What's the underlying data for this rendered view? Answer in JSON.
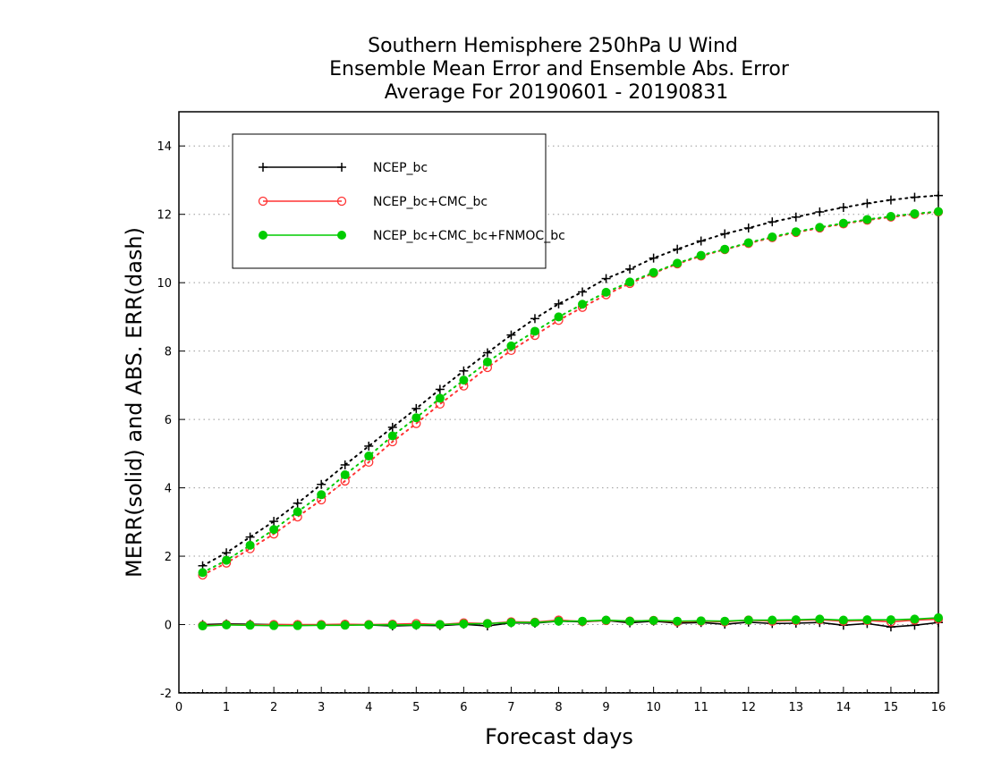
{
  "chart_data": {
    "type": "line",
    "title": [
      "Southern Hemisphere 250hPa U Wind",
      "Ensemble Mean Error and Ensemble Abs. Error",
      "Average For 20190601 - 20190831"
    ],
    "xlabel": "Forecast days",
    "ylabel": "MERR(solid) and ABS. ERR(dash)",
    "xlim": [
      0,
      16
    ],
    "ylim": [
      -2,
      15
    ],
    "xticks": [
      "0",
      "1",
      "2",
      "3",
      "4",
      "5",
      "6",
      "7",
      "8",
      "9",
      "10",
      "11",
      "12",
      "13",
      "14",
      "15",
      "16"
    ],
    "yticks": [
      "-2",
      "0",
      "2",
      "4",
      "6",
      "8",
      "10",
      "12",
      "14"
    ],
    "grid": "horizontal dotted",
    "legend_position": "top-left",
    "x": [
      0.5,
      1,
      1.5,
      2,
      2.5,
      3,
      3.5,
      4,
      4.5,
      5,
      5.5,
      6,
      6.5,
      7,
      7.5,
      8,
      8.5,
      9,
      9.5,
      10,
      10.5,
      11,
      11.5,
      12,
      12.5,
      13,
      13.5,
      14,
      14.5,
      15,
      15.5,
      16
    ],
    "series": [
      {
        "name": "NCEP_bc",
        "color": "#000000",
        "marker": "plus",
        "merr": [
          0.0,
          0.02,
          0.01,
          0.0,
          -0.01,
          -0.01,
          0.0,
          -0.01,
          -0.04,
          -0.02,
          -0.03,
          0.01,
          -0.04,
          0.05,
          0.04,
          0.1,
          0.08,
          0.12,
          0.05,
          0.1,
          0.04,
          0.06,
          0.01,
          0.07,
          0.03,
          0.04,
          0.06,
          -0.02,
          0.03,
          -0.07,
          -0.02,
          0.06
        ],
        "abs_err": [
          1.72,
          2.1,
          2.56,
          3.02,
          3.55,
          4.1,
          4.67,
          5.22,
          5.77,
          6.32,
          6.88,
          7.42,
          7.95,
          8.47,
          8.95,
          9.38,
          9.73,
          10.12,
          10.4,
          10.72,
          10.98,
          11.22,
          11.43,
          11.6,
          11.78,
          11.92,
          12.07,
          12.2,
          12.32,
          12.42,
          12.5,
          12.55
        ]
      },
      {
        "name": "NCEP_bc+CMC_bc",
        "color": "#ff3333",
        "marker": "open-circle",
        "merr": [
          -0.03,
          0.0,
          -0.01,
          0.0,
          0.0,
          0.0,
          0.01,
          0.0,
          0.01,
          0.03,
          0.0,
          0.05,
          0.03,
          0.08,
          0.07,
          0.13,
          0.09,
          0.12,
          0.1,
          0.12,
          0.08,
          0.1,
          0.08,
          0.13,
          0.1,
          0.12,
          0.14,
          0.1,
          0.12,
          0.08,
          0.13,
          0.16
        ],
        "abs_err": [
          1.45,
          1.8,
          2.22,
          2.65,
          3.15,
          3.65,
          4.2,
          4.75,
          5.35,
          5.88,
          6.45,
          6.98,
          7.52,
          8.02,
          8.46,
          8.9,
          9.28,
          9.65,
          9.98,
          10.28,
          10.55,
          10.78,
          10.97,
          11.15,
          11.32,
          11.47,
          11.6,
          11.72,
          11.83,
          11.92,
          12.0,
          12.07
        ]
      },
      {
        "name": "NCEP_bc+CMC_bc+FNMOC_bc",
        "color": "#00cc00",
        "marker": "filled-circle",
        "merr": [
          -0.04,
          -0.01,
          -0.02,
          -0.03,
          -0.03,
          -0.02,
          -0.02,
          -0.01,
          -0.01,
          -0.01,
          0.0,
          0.02,
          0.03,
          0.06,
          0.06,
          0.1,
          0.1,
          0.13,
          0.1,
          0.12,
          0.1,
          0.11,
          0.1,
          0.13,
          0.13,
          0.14,
          0.16,
          0.13,
          0.14,
          0.14,
          0.16,
          0.2
        ],
        "abs_err": [
          1.52,
          1.88,
          2.32,
          2.78,
          3.3,
          3.8,
          4.38,
          4.93,
          5.52,
          6.05,
          6.62,
          7.15,
          7.68,
          8.15,
          8.58,
          9.0,
          9.37,
          9.72,
          10.02,
          10.3,
          10.57,
          10.8,
          10.98,
          11.17,
          11.34,
          11.49,
          11.62,
          11.74,
          11.85,
          11.94,
          12.02,
          12.08
        ]
      }
    ]
  }
}
